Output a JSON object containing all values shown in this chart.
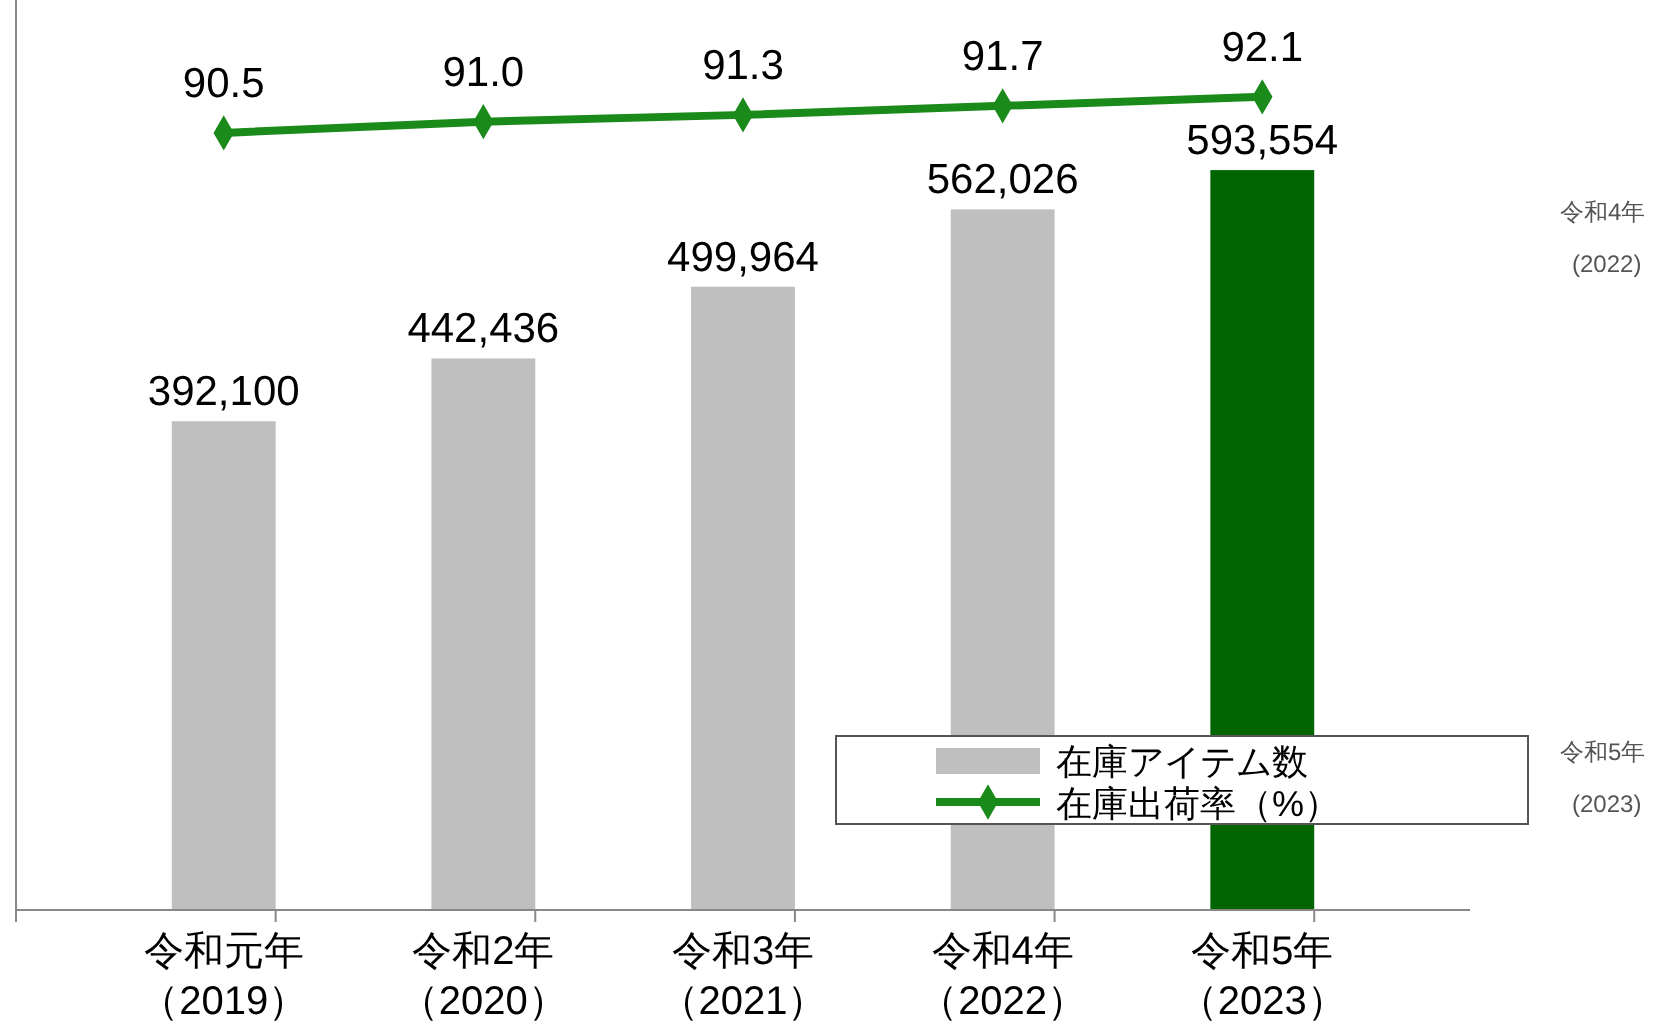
{
  "chart_data": {
    "type": "bar",
    "categories": [
      "令和元年（2019）",
      "令和2年（2020）",
      "令和3年（2021）",
      "令和4年（2022）",
      "令和5年（2023）"
    ],
    "series": [
      {
        "name": "在庫アイテム数",
        "colors": [
          "#bfbfbf",
          "#bfbfbf",
          "#bfbfbf",
          "#bfbfbf",
          "#006400"
        ],
        "values": [
          392100,
          442436,
          499964,
          562026,
          593554
        ],
        "value_labels": [
          "392,100",
          "442,436",
          "499,964",
          "562,026",
          "593,554"
        ]
      },
      {
        "name": "在庫出荷率（%）",
        "type": "line",
        "axis": "y2",
        "color": "#1a8a1a",
        "marker": "diamond",
        "values": [
          90.5,
          91.0,
          91.3,
          91.7,
          92.1
        ],
        "value_labels": [
          "90.5",
          "91.0",
          "91.3",
          "91.7",
          "92.1"
        ]
      }
    ],
    "ylim": [
      0,
      730000
    ],
    "y2lim": [
      56,
      96.4
    ],
    "tick_labels": false,
    "legend": "bottom right",
    "annotations": [
      "令和4年(2022)",
      "令和5年(2023)"
    ]
  }
}
